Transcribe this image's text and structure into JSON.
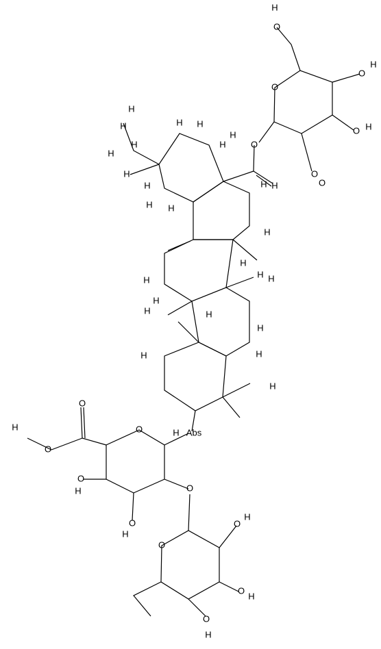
{
  "molecule": {
    "labels": [
      "H",
      "O",
      "O",
      "O",
      "H",
      "O",
      "H",
      "O",
      "H",
      "O",
      "O",
      "H",
      "H",
      "H",
      "H",
      "H",
      "H",
      "H",
      "H",
      "H",
      "H",
      "H",
      "H",
      "H",
      "H",
      "H",
      "H",
      "H",
      "H",
      "H",
      "H",
      "H",
      "H",
      "H",
      "H",
      "H",
      "O",
      "O",
      "H",
      "O",
      "Abs",
      "H",
      "O",
      "O",
      "H",
      "O",
      "H",
      "O",
      "O",
      "H",
      "O",
      "H",
      "O",
      "H"
    ]
  }
}
